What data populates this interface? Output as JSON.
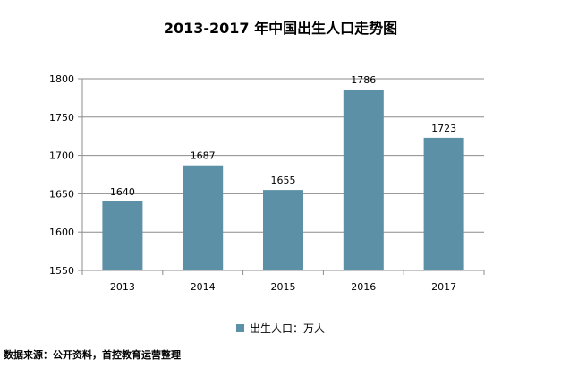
{
  "chart_data": {
    "type": "bar",
    "title": "2013-2017 年中国出生人口走势图",
    "categories": [
      "2013",
      "2014",
      "2015",
      "2016",
      "2017"
    ],
    "series": [
      {
        "name": "出生人口：万人",
        "values": [
          1640,
          1687,
          1655,
          1786,
          1723
        ]
      }
    ],
    "ylim": [
      1550,
      1800
    ],
    "yticks": [
      1550,
      1600,
      1650,
      1700,
      1750,
      1800
    ],
    "grid": true,
    "legend_position": "bottom",
    "bar_color": "#5B90A7",
    "data_labels": [
      "1640",
      "1687",
      "1655",
      "1786",
      "1723"
    ]
  },
  "source_note": "数据来源：公开资料，首控教育运营整理"
}
